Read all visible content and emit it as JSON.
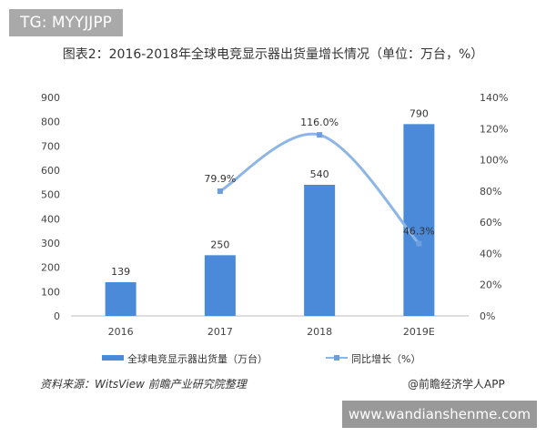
{
  "watermark_top": "TG: MYYJJPP",
  "watermark_bottom": "www.wandianshenme.com",
  "source": "资料来源：WitsView 前瞻产业研究院整理",
  "brand": "@前瞻经济学人APP",
  "colors": {
    "bar": "#4a8ad8",
    "line": "#8db6e6",
    "marker": "#6d9fdc"
  },
  "chart_data": {
    "type": "bar+line",
    "title": "图表2：2016-2018年全球电竞显示器出货量增长情况（单位：万台，%）",
    "categories": [
      "2016",
      "2017",
      "2018",
      "2019E"
    ],
    "series": [
      {
        "name": "全球电竞显示器出货量（万台）",
        "type": "bar",
        "axis": "left",
        "values": [
          139,
          250,
          540,
          790
        ],
        "labels": [
          "139",
          "250",
          "540",
          "790"
        ]
      },
      {
        "name": "同比增长（%）",
        "type": "line",
        "axis": "right",
        "values": [
          null,
          79.9,
          116.0,
          46.3
        ],
        "labels": [
          "",
          "79.9%",
          "116.0%",
          "46.3%"
        ]
      }
    ],
    "left_axis": {
      "ylim": [
        0,
        900
      ],
      "ticks": [
        "0",
        "100",
        "200",
        "300",
        "400",
        "500",
        "600",
        "700",
        "800",
        "900"
      ]
    },
    "right_axis": {
      "ylim": [
        0,
        140
      ],
      "ticks": [
        "0%",
        "20%",
        "40%",
        "60%",
        "80%",
        "100%",
        "120%",
        "140%"
      ]
    },
    "grid": false,
    "legend_position": "bottom"
  }
}
